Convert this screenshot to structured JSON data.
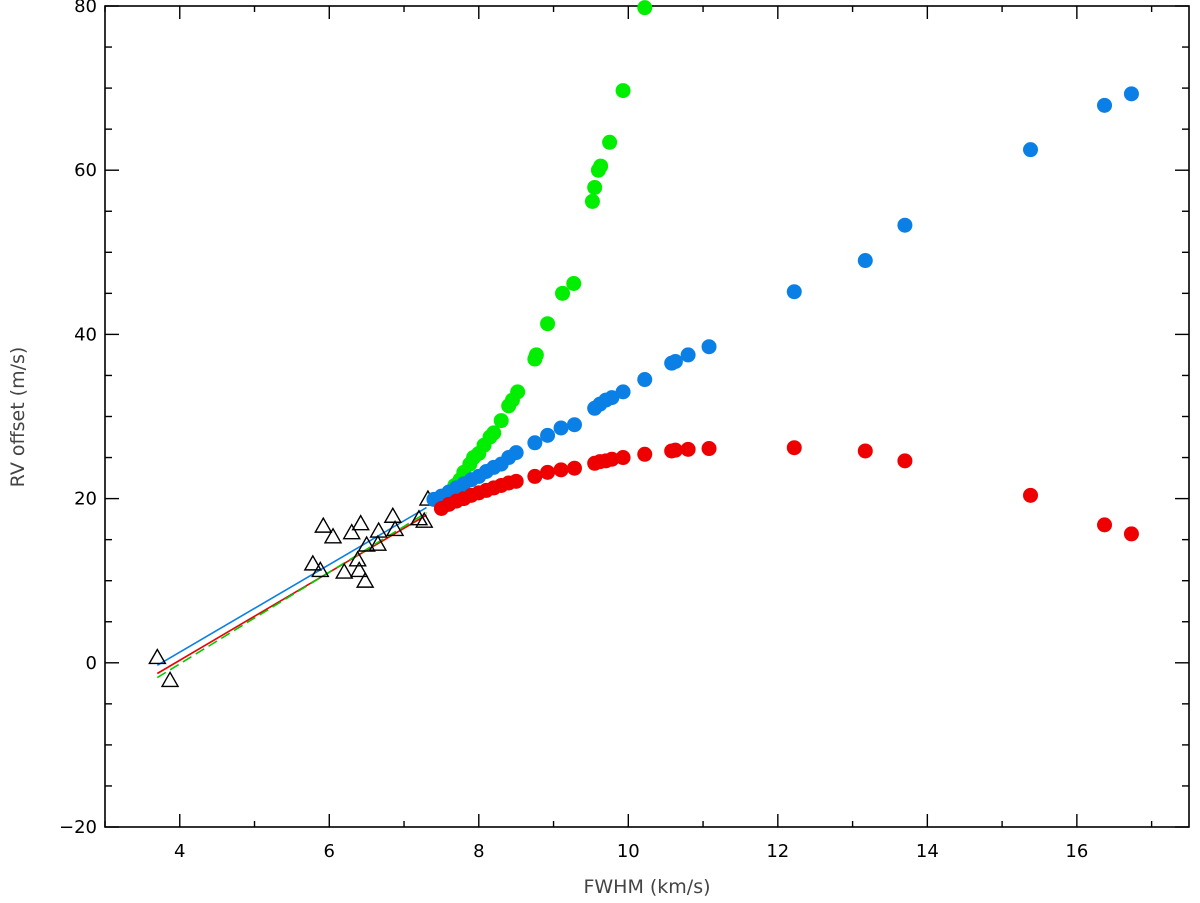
{
  "chart_data": {
    "type": "scatter",
    "title": "",
    "xlabel": "FWHM (km/s)",
    "ylabel": "RV offset (m/s)",
    "xlim": [
      3,
      17.5
    ],
    "ylim": [
      -20,
      80
    ],
    "xticks": [
      4,
      6,
      8,
      10,
      12,
      14,
      16
    ],
    "yticks": [
      -20,
      0,
      20,
      40,
      60,
      80
    ],
    "grid": false,
    "series": [
      {
        "marker": "open-triangle",
        "color": "#000000",
        "points": [
          [
            3.7,
            0.6
          ],
          [
            3.87,
            -2.2
          ],
          [
            5.78,
            12.0
          ],
          [
            5.88,
            11.2
          ],
          [
            5.92,
            16.6
          ],
          [
            6.05,
            15.3
          ],
          [
            6.2,
            11.0
          ],
          [
            6.3,
            15.8
          ],
          [
            6.38,
            12.5
          ],
          [
            6.4,
            11.2
          ],
          [
            6.42,
            16.9
          ],
          [
            6.48,
            9.9
          ],
          [
            6.5,
            14.3
          ],
          [
            6.65,
            14.4
          ],
          [
            6.66,
            16.0
          ],
          [
            6.85,
            17.8
          ],
          [
            6.88,
            16.2
          ],
          [
            7.2,
            17.5
          ],
          [
            7.27,
            17.2
          ],
          [
            7.32,
            19.9
          ]
        ]
      },
      {
        "marker": "filled-circle",
        "color": "#00ee00",
        "points": [
          [
            7.5,
            19.7
          ],
          [
            7.6,
            20.5
          ],
          [
            7.68,
            21.6
          ],
          [
            7.75,
            22.3
          ],
          [
            7.8,
            23.2
          ],
          [
            7.88,
            24.2
          ],
          [
            7.93,
            25.0
          ],
          [
            8.0,
            25.5
          ],
          [
            8.07,
            26.5
          ],
          [
            8.15,
            27.5
          ],
          [
            8.2,
            28.0
          ],
          [
            8.3,
            29.5
          ],
          [
            8.4,
            31.3
          ],
          [
            8.45,
            32.0
          ],
          [
            8.52,
            33.0
          ],
          [
            8.75,
            37.0
          ],
          [
            8.77,
            37.5
          ],
          [
            8.92,
            41.3
          ],
          [
            9.12,
            45.0
          ],
          [
            9.27,
            46.2
          ],
          [
            9.52,
            56.2
          ],
          [
            9.55,
            57.9
          ],
          [
            9.6,
            60.0
          ],
          [
            9.63,
            60.5
          ],
          [
            9.75,
            63.4
          ],
          [
            9.93,
            69.7
          ],
          [
            10.22,
            79.8
          ]
        ]
      },
      {
        "marker": "filled-circle",
        "color": "#0a80e6",
        "points": [
          [
            7.4,
            19.9
          ],
          [
            7.5,
            20.3
          ],
          [
            7.6,
            20.8
          ],
          [
            7.7,
            21.3
          ],
          [
            7.8,
            21.8
          ],
          [
            7.9,
            22.3
          ],
          [
            8.0,
            22.7
          ],
          [
            8.1,
            23.3
          ],
          [
            8.2,
            23.8
          ],
          [
            8.3,
            24.2
          ],
          [
            8.4,
            25.0
          ],
          [
            8.5,
            25.6
          ],
          [
            8.75,
            26.8
          ],
          [
            8.92,
            27.7
          ],
          [
            9.1,
            28.6
          ],
          [
            9.28,
            29.0
          ],
          [
            9.55,
            31.0
          ],
          [
            9.62,
            31.5
          ],
          [
            9.7,
            32.0
          ],
          [
            9.78,
            32.3
          ],
          [
            9.93,
            33.0
          ],
          [
            10.22,
            34.5
          ],
          [
            10.58,
            36.5
          ],
          [
            10.63,
            36.7
          ],
          [
            10.8,
            37.5
          ],
          [
            11.08,
            38.5
          ],
          [
            12.22,
            45.2
          ],
          [
            13.17,
            49.0
          ],
          [
            13.7,
            53.3
          ],
          [
            15.38,
            62.5
          ],
          [
            16.37,
            67.9
          ],
          [
            16.73,
            69.3
          ]
        ]
      },
      {
        "marker": "filled-circle",
        "color": "#ee0000",
        "points": [
          [
            7.5,
            18.8
          ],
          [
            7.6,
            19.3
          ],
          [
            7.7,
            19.7
          ],
          [
            7.8,
            20.0
          ],
          [
            7.9,
            20.4
          ],
          [
            8.0,
            20.7
          ],
          [
            8.1,
            21.0
          ],
          [
            8.2,
            21.3
          ],
          [
            8.3,
            21.6
          ],
          [
            8.4,
            21.9
          ],
          [
            8.5,
            22.1
          ],
          [
            8.75,
            22.7
          ],
          [
            8.92,
            23.2
          ],
          [
            9.1,
            23.5
          ],
          [
            9.28,
            23.7
          ],
          [
            9.55,
            24.3
          ],
          [
            9.62,
            24.5
          ],
          [
            9.7,
            24.6
          ],
          [
            9.78,
            24.8
          ],
          [
            9.93,
            25.0
          ],
          [
            10.22,
            25.4
          ],
          [
            10.58,
            25.8
          ],
          [
            10.63,
            25.9
          ],
          [
            10.8,
            26.0
          ],
          [
            11.08,
            26.1
          ],
          [
            12.22,
            26.2
          ],
          [
            13.17,
            25.8
          ],
          [
            13.7,
            24.6
          ],
          [
            15.38,
            20.4
          ],
          [
            16.37,
            16.8
          ],
          [
            16.73,
            15.7
          ]
        ]
      }
    ],
    "fit_lines": [
      {
        "color": "#ee0000",
        "style": "solid",
        "points": [
          [
            3.7,
            -1.3
          ],
          [
            7.3,
            18.0
          ]
        ]
      },
      {
        "color": "#00cc00",
        "style": "dashed",
        "points": [
          [
            3.7,
            -1.8
          ],
          [
            7.3,
            18.3
          ]
        ]
      },
      {
        "color": "#0a80e6",
        "style": "solid",
        "points": [
          [
            3.7,
            -0.3
          ],
          [
            7.3,
            18.9
          ]
        ]
      }
    ]
  }
}
